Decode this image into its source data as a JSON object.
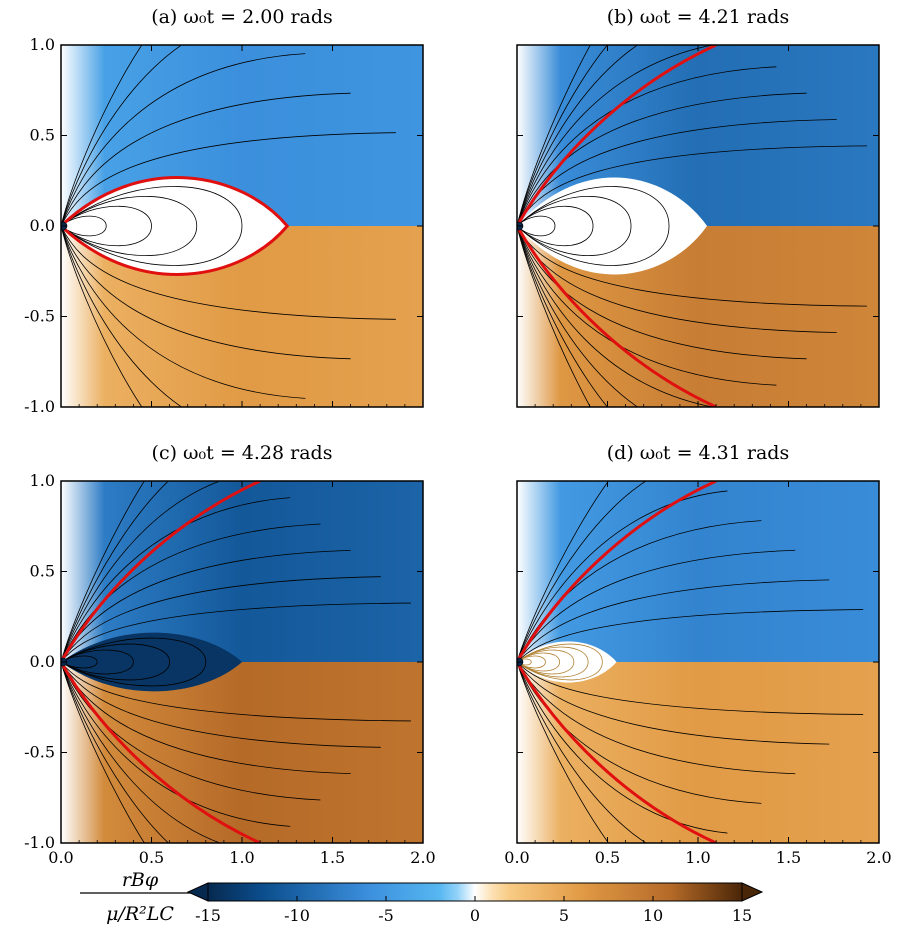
{
  "chart_data": [
    {
      "type": "heatmap",
      "panel": "a",
      "title": "(a) ω₀t = 2.00 rads",
      "xlim": [
        0,
        2.0
      ],
      "ylim": [
        -1.0,
        1.0
      ],
      "xticks": [
        "0.0",
        "0.5",
        "1.0",
        "1.5",
        "2.0"
      ],
      "yticks": [
        "1.0",
        "0.5",
        "0.0",
        "-0.5",
        "-1.0"
      ],
      "show_x_tick_labels": false,
      "show_y_tick_labels": true,
      "upper_level": -6,
      "lower_level": 6,
      "closed_zone_extent_x": 1.25,
      "closed_zone_height": 0.33,
      "separatrix_color": "#e01010"
    },
    {
      "type": "heatmap",
      "panel": "b",
      "title": "(b) ω₀t = 4.21 rads",
      "xlim": [
        0,
        2.0
      ],
      "ylim": [
        -1.0,
        1.0
      ],
      "xticks": [
        "0.0",
        "0.5",
        "1.0",
        "1.5",
        "2.0"
      ],
      "yticks": [
        "1.0",
        "0.5",
        "0.0",
        "-0.5",
        "-1.0"
      ],
      "show_x_tick_labels": false,
      "show_y_tick_labels": false,
      "upper_level": -9,
      "lower_level": 9,
      "closed_zone_extent_x": 1.05,
      "closed_zone_height": 0.33,
      "separatrix_color": "#e01010"
    },
    {
      "type": "heatmap",
      "panel": "c",
      "title": "(c) ω₀t = 4.28 rads",
      "xlim": [
        0,
        2.0
      ],
      "ylim": [
        -1.0,
        1.0
      ],
      "xticks": [
        "0.0",
        "0.5",
        "1.0",
        "1.5",
        "2.0"
      ],
      "yticks": [
        "1.0",
        "0.5",
        "0.0",
        "-0.5",
        "-1.0"
      ],
      "show_x_tick_labels": true,
      "show_y_tick_labels": true,
      "upper_level": -11,
      "lower_level": 11,
      "closed_zone_extent_x": 1.0,
      "closed_zone_height": 0.2,
      "separatrix_color": "#e01010"
    },
    {
      "type": "heatmap",
      "panel": "d",
      "title": "(d) ω₀t = 4.31 rads",
      "xlim": [
        0,
        2.0
      ],
      "ylim": [
        -1.0,
        1.0
      ],
      "xticks": [
        "0.0",
        "0.5",
        "1.0",
        "1.5",
        "2.0"
      ],
      "yticks": [
        "1.0",
        "0.5",
        "0.0",
        "-0.5",
        "-1.0"
      ],
      "show_x_tick_labels": true,
      "show_y_tick_labels": false,
      "upper_level": -7,
      "lower_level": 6,
      "closed_zone_extent_x": 0.55,
      "closed_zone_height": 0.14,
      "separatrix_color": "#e01010"
    }
  ],
  "colorbar": {
    "label_numerator": "rBφ",
    "label_denominator": "μ/R²LC",
    "range": [
      -15,
      15
    ],
    "ticks": [
      "-15",
      "-10",
      "-5",
      "0",
      "5",
      "10",
      "15"
    ],
    "tick_values": [
      -15,
      -10,
      -5,
      0,
      5,
      10,
      15
    ],
    "colors": {
      "neg_extreme": "#06294f",
      "neg_strong": "#0b4d8c",
      "neg_mid": "#3b8fdc",
      "neg_light": "#5bbcf4",
      "zero": "#ffffff",
      "pos_light": "#fad08a",
      "pos_mid": "#e19a45",
      "pos_strong": "#b56a28",
      "pos_extreme": "#4a2608"
    }
  }
}
